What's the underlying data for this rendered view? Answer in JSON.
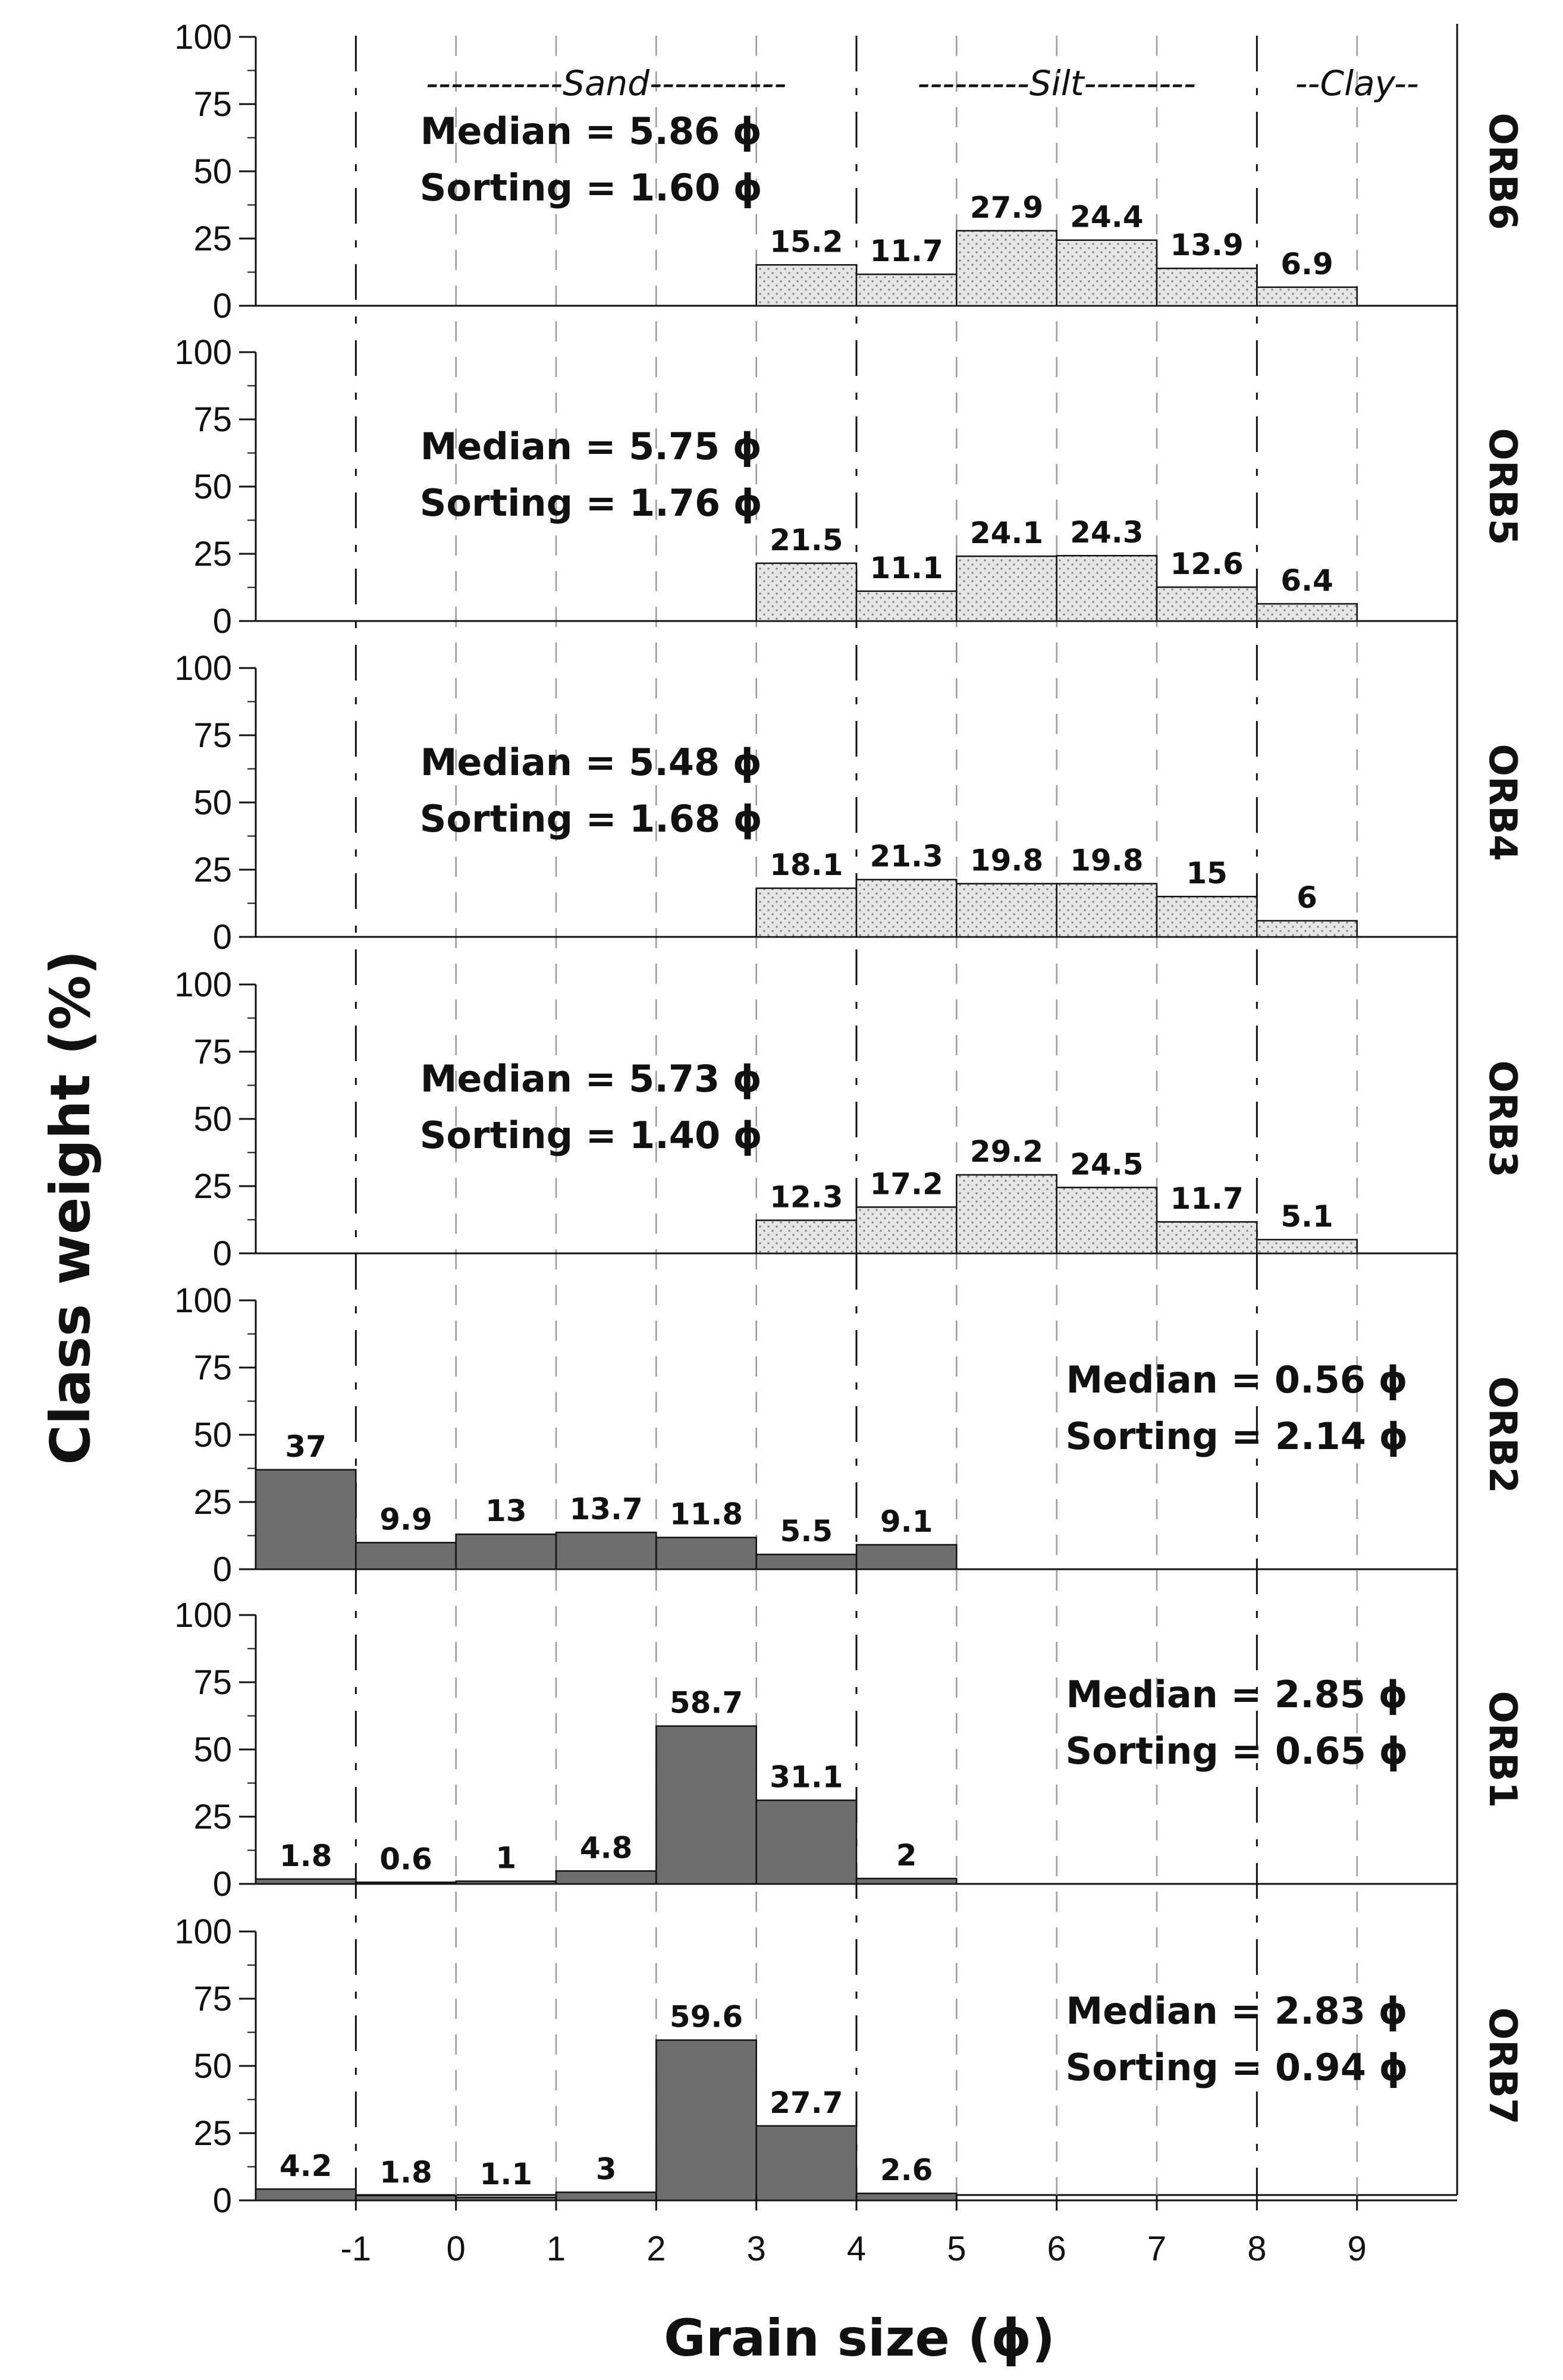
{
  "chart_data": {
    "type": "bar",
    "title": "",
    "xlabel": "Grain size (ϕ)",
    "ylabel": "Class weight (%)",
    "xlim": [
      -2,
      10
    ],
    "ylim": [
      0,
      100
    ],
    "x_ticks": [
      -1,
      0,
      1,
      2,
      3,
      4,
      5,
      6,
      7,
      8,
      9
    ],
    "y_ticks": [
      0,
      25,
      50,
      75,
      100
    ],
    "class_width": 1,
    "region_boundaries": [
      -1,
      4,
      8
    ],
    "regions": [
      {
        "text": "-----------Sand-----------",
        "x": 1.5
      },
      {
        "text": "---------Silt---------",
        "x": 6
      },
      {
        "text": "--Clay--",
        "x": 9
      }
    ],
    "grid": "dashed vertical lines at integer phi",
    "panels": [
      {
        "name": "ORB6",
        "fill": "dotted",
        "stats_side": "left",
        "median": "Median = 5.86 ϕ",
        "sorting": "Sorting =  1.60 ϕ",
        "bars": [
          {
            "x": 3,
            "value": 15.2,
            "label": "15.2"
          },
          {
            "x": 4,
            "value": 11.7,
            "label": "11.7"
          },
          {
            "x": 5,
            "value": 27.9,
            "label": "27.9"
          },
          {
            "x": 6,
            "value": 24.4,
            "label": "24.4"
          },
          {
            "x": 7,
            "value": 13.9,
            "label": "13.9"
          },
          {
            "x": 8,
            "value": 6.9,
            "label": "6.9"
          }
        ]
      },
      {
        "name": "ORB5",
        "fill": "dotted",
        "stats_side": "left",
        "median": "Median = 5.75 ϕ",
        "sorting": "Sorting =  1.76 ϕ",
        "bars": [
          {
            "x": 3,
            "value": 21.5,
            "label": "21.5"
          },
          {
            "x": 4,
            "value": 11.1,
            "label": "11.1"
          },
          {
            "x": 5,
            "value": 24.1,
            "label": "24.1"
          },
          {
            "x": 6,
            "value": 24.3,
            "label": "24.3"
          },
          {
            "x": 7,
            "value": 12.6,
            "label": "12.6"
          },
          {
            "x": 8,
            "value": 6.4,
            "label": "6.4"
          }
        ]
      },
      {
        "name": "ORB4",
        "fill": "dotted",
        "stats_side": "left",
        "median": "Median = 5.48 ϕ",
        "sorting": "Sorting =  1.68 ϕ",
        "bars": [
          {
            "x": 3,
            "value": 18.1,
            "label": "18.1"
          },
          {
            "x": 4,
            "value": 21.3,
            "label": "21.3"
          },
          {
            "x": 5,
            "value": 19.8,
            "label": "19.8"
          },
          {
            "x": 6,
            "value": 19.8,
            "label": "19.8"
          },
          {
            "x": 7,
            "value": 15,
            "label": "15"
          },
          {
            "x": 8,
            "value": 6,
            "label": "6"
          }
        ]
      },
      {
        "name": "ORB3",
        "fill": "dotted",
        "stats_side": "left",
        "median": "Median = 5.73 ϕ",
        "sorting": "Sorting =  1.40 ϕ",
        "bars": [
          {
            "x": 3,
            "value": 12.3,
            "label": "12.3"
          },
          {
            "x": 4,
            "value": 17.2,
            "label": "17.2"
          },
          {
            "x": 5,
            "value": 29.2,
            "label": "29.2"
          },
          {
            "x": 6,
            "value": 24.5,
            "label": "24.5"
          },
          {
            "x": 7,
            "value": 11.7,
            "label": "11.7"
          },
          {
            "x": 8,
            "value": 5.1,
            "label": "5.1"
          }
        ]
      },
      {
        "name": "ORB2",
        "fill": "solid",
        "stats_side": "right",
        "median": "Median = 0.56 ϕ",
        "sorting": "Sorting =  2.14 ϕ",
        "bars": [
          {
            "x": -2,
            "value": 37,
            "label": "37"
          },
          {
            "x": -1,
            "value": 9.9,
            "label": "9.9"
          },
          {
            "x": 0,
            "value": 13,
            "label": "13"
          },
          {
            "x": 1,
            "value": 13.7,
            "label": "13.7"
          },
          {
            "x": 2,
            "value": 11.8,
            "label": "11.8"
          },
          {
            "x": 3,
            "value": 5.5,
            "label": "5.5"
          },
          {
            "x": 4,
            "value": 9.1,
            "label": "9.1"
          }
        ]
      },
      {
        "name": "ORB1",
        "fill": "solid",
        "stats_side": "right",
        "median": "Median = 2.85 ϕ",
        "sorting": "Sorting =  0.65 ϕ",
        "bars": [
          {
            "x": -2,
            "value": 1.8,
            "label": "1.8"
          },
          {
            "x": -1,
            "value": 0.6,
            "label": "0.6"
          },
          {
            "x": 0,
            "value": 1,
            "label": "1"
          },
          {
            "x": 1,
            "value": 4.8,
            "label": "4.8"
          },
          {
            "x": 2,
            "value": 58.7,
            "label": "58.7"
          },
          {
            "x": 3,
            "value": 31.1,
            "label": "31.1"
          },
          {
            "x": 4,
            "value": 2,
            "label": "2"
          }
        ]
      },
      {
        "name": "ORB7",
        "fill": "solid",
        "stats_side": "right",
        "median": "Median = 2.83 ϕ",
        "sorting": "Sorting =  0.94 ϕ",
        "bars": [
          {
            "x": -2,
            "value": 4.2,
            "label": "4.2"
          },
          {
            "x": -1,
            "value": 1.8,
            "label": "1.8"
          },
          {
            "x": 0,
            "value": 1.1,
            "label": "1.1"
          },
          {
            "x": 1,
            "value": 3,
            "label": "3"
          },
          {
            "x": 2,
            "value": 59.6,
            "label": "59.6"
          },
          {
            "x": 3,
            "value": 27.7,
            "label": "27.7"
          },
          {
            "x": 4,
            "value": 2.6,
            "label": "2.6"
          }
        ]
      }
    ]
  },
  "colors": {
    "solid_bar": "#6e6e6e",
    "dotted_bar_bg": "#e6e6e6",
    "dot": "#8a8a8a",
    "axis": "#111111",
    "grid": "#9a9a9a"
  }
}
